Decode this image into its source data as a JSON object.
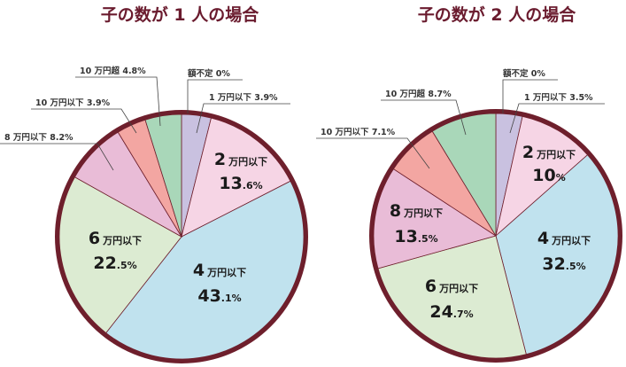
{
  "chart_data": [
    {
      "type": "pie",
      "title": "子の数が 1 人の場合",
      "slices": [
        {
          "category": "額不定",
          "value": 0,
          "display": "0%",
          "color": "#c9c1e0",
          "label_style": "callout"
        },
        {
          "category": "1 万円以下",
          "value": 3.9,
          "display": "3.9%",
          "color": "#c9c1e0",
          "label_style": "callout"
        },
        {
          "category": "2 万円以下",
          "value": 13.6,
          "num": "2",
          "unit": "万円以下",
          "int": "13",
          "dec": ".6%",
          "color": "#f6d5e5",
          "label_style": "inside"
        },
        {
          "category": "4 万円以下",
          "value": 43.1,
          "num": "4",
          "unit": "万円以下",
          "int": "43",
          "dec": ".1%",
          "color": "#c0e2ee",
          "label_style": "inside"
        },
        {
          "category": "6 万円以下",
          "value": 22.5,
          "num": "6",
          "unit": "万円以下",
          "int": "22",
          "dec": ".5%",
          "color": "#dcebd2",
          "label_style": "inside"
        },
        {
          "category": "8 万円以下",
          "value": 8.2,
          "display": "8.2%",
          "color": "#e9bcd7",
          "label_style": "callout"
        },
        {
          "category": "10 万円以下",
          "value": 3.9,
          "display": "3.9%",
          "color": "#f3a6a2",
          "label_style": "callout"
        },
        {
          "category": "10 万円超",
          "value": 4.8,
          "display": "4.8%",
          "color": "#a9d7b9",
          "label_style": "callout"
        }
      ]
    },
    {
      "type": "pie",
      "title": "子の数が 2 人の場合",
      "slices": [
        {
          "category": "額不定",
          "value": 0,
          "display": "0%",
          "color": "#c9c1e0",
          "label_style": "callout"
        },
        {
          "category": "1 万円以下",
          "value": 3.5,
          "display": "3.5%",
          "color": "#c9c1e0",
          "label_style": "callout"
        },
        {
          "category": "2 万円以下",
          "value": 10,
          "num": "2",
          "unit": "万円以下",
          "int": "10",
          "dec": "%",
          "color": "#f6d5e5",
          "label_style": "inside"
        },
        {
          "category": "4 万円以下",
          "value": 32.5,
          "num": "4",
          "unit": "万円以下",
          "int": "32",
          "dec": ".5%",
          "color": "#c0e2ee",
          "label_style": "inside"
        },
        {
          "category": "6 万円以下",
          "value": 24.7,
          "num": "6",
          "unit": "万円以下",
          "int": "24",
          "dec": ".7%",
          "color": "#dcebd2",
          "label_style": "inside"
        },
        {
          "category": "8 万円以下",
          "value": 13.5,
          "num": "8",
          "unit": "万円以下",
          "int": "13",
          "dec": ".5%",
          "color": "#e9bcd7",
          "label_style": "inside"
        },
        {
          "category": "10 万円以下",
          "value": 7.1,
          "display": "7.1%",
          "color": "#f3a6a2",
          "label_style": "callout"
        },
        {
          "category": "10 万円超",
          "value": 8.7,
          "display": "8.7%",
          "color": "#a9d7b9",
          "label_style": "callout"
        }
      ]
    }
  ],
  "colors": {
    "title": "#6a1b2e",
    "rim": "#6e1f2c",
    "divider": "#6e1f2c"
  }
}
